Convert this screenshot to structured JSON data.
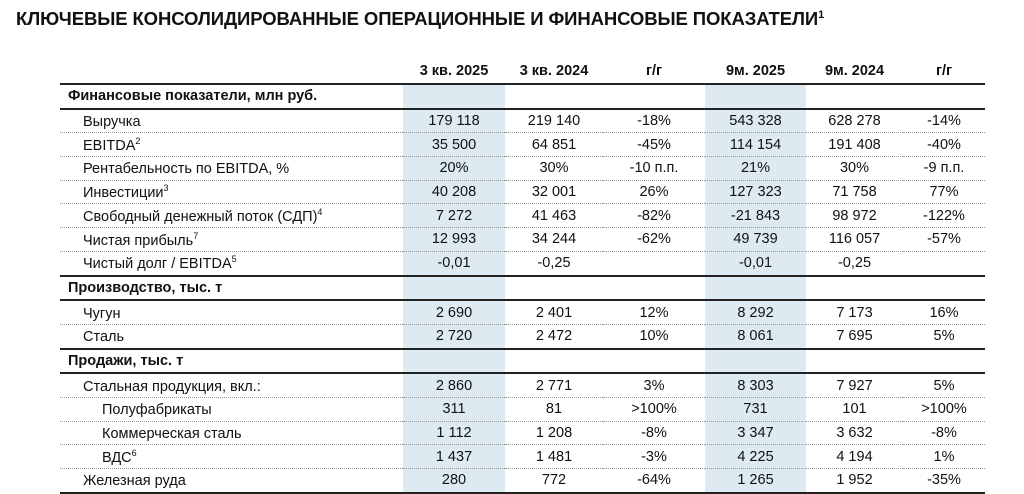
{
  "title": "КЛЮЧЕВЫЕ КОНСОЛИДИРОВАННЫЕ ОПЕРАЦИОННЫЕ И ФИНАНСОВЫЕ ПОКАЗАТЕЛИ",
  "title_note": "1",
  "columns": [
    "3 кв. 2025",
    "3 кв. 2024",
    "г/г",
    "9м. 2025",
    "9м. 2024",
    "г/г"
  ],
  "sections": [
    {
      "title": "Финансовые показатели, млн руб.",
      "rows": [
        {
          "label": "Выручка",
          "note": "",
          "values": [
            "179 118",
            "219 140",
            "-18%",
            "543 328",
            "628 278",
            "-14%"
          ]
        },
        {
          "label": "EBITDA",
          "note": "2",
          "values": [
            "35 500",
            "64 851",
            "-45%",
            "114 154",
            "191 408",
            "-40%"
          ]
        },
        {
          "label": "Рентабельность по EBITDA, %",
          "note": "",
          "values": [
            "20%",
            "30%",
            "-10 п.п.",
            "21%",
            "30%",
            "-9 п.п."
          ]
        },
        {
          "label": "Инвестиции",
          "note": "3",
          "values": [
            "40 208",
            "32 001",
            "26%",
            "127 323",
            "71 758",
            "77%"
          ]
        },
        {
          "label": "Свободный денежный поток (СДП)",
          "note": "4",
          "values": [
            "7 272",
            "41 463",
            "-82%",
            "-21 843",
            "98 972",
            "-122%"
          ]
        },
        {
          "label": "Чистая прибыль",
          "note": "7",
          "values": [
            "12 993",
            "34 244",
            "-62%",
            "49 739",
            "116 057",
            "-57%"
          ]
        },
        {
          "label": "Чистый долг / EBITDA",
          "note": "5",
          "values": [
            "-0,01",
            "-0,25",
            "",
            "-0,01",
            "-0,25",
            ""
          ]
        }
      ]
    },
    {
      "title": "Производство, тыс. т",
      "rows": [
        {
          "label": "Чугун",
          "note": "",
          "values": [
            "2 690",
            "2 401",
            "12%",
            "8 292",
            "7 173",
            "16%"
          ]
        },
        {
          "label": "Сталь",
          "note": "",
          "values": [
            "2 720",
            "2 472",
            "10%",
            "8 061",
            "7 695",
            "5%"
          ]
        }
      ]
    },
    {
      "title": "Продажи, тыс. т",
      "rows": [
        {
          "label": "Стальная продукция, вкл.:",
          "note": "",
          "values": [
            "2 860",
            "2 771",
            "3%",
            "8 303",
            "7 927",
            "5%"
          ]
        },
        {
          "label": "Полуфабрикаты",
          "note": "",
          "sub": true,
          "values": [
            "311",
            "81",
            ">100%",
            "731",
            "101",
            ">100%"
          ]
        },
        {
          "label": "Коммерческая сталь",
          "note": "",
          "sub": true,
          "values": [
            "1 112",
            "1 208",
            "-8%",
            "3 347",
            "3 632",
            "-8%"
          ]
        },
        {
          "label": "ВДС",
          "note": "6",
          "sub": true,
          "values": [
            "1 437",
            "1 481",
            "-3%",
            "4 225",
            "4 194",
            "1%"
          ]
        },
        {
          "label": "Железная руда",
          "note": "",
          "values": [
            "280",
            "772",
            "-64%",
            "1 265",
            "1 952",
            "-35%"
          ]
        }
      ]
    }
  ]
}
